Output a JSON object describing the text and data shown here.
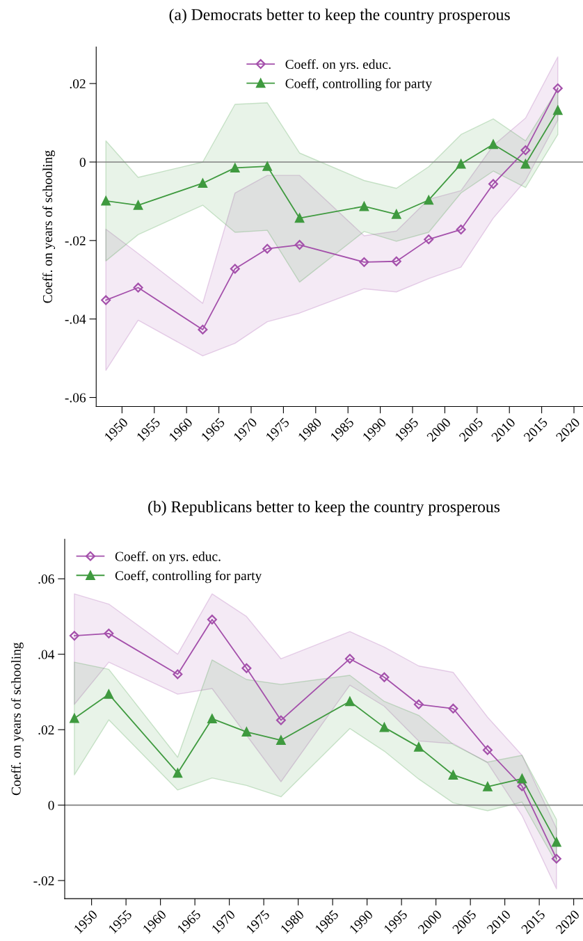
{
  "chart_data": [
    {
      "type": "line",
      "title": "(a) Democrats better to keep the country prosperous",
      "ylabel": "Coeff. on years of schooling",
      "x": [
        1947.5,
        1952.5,
        1962.5,
        1967.5,
        1972.5,
        1977.5,
        1987.5,
        1992.5,
        1997.5,
        2002.5,
        2007.5,
        2012.5,
        2017.5
      ],
      "series": [
        {
          "name": "Coeff. on yrs. educ.",
          "color": "#a450ab",
          "marker": "diamond",
          "values": [
            -0.0352,
            -0.032,
            -0.0427,
            -0.0272,
            -0.0221,
            -0.0211,
            -0.0255,
            -0.0253,
            -0.0197,
            -0.0172,
            -0.0056,
            0.003,
            0.0188
          ],
          "lower": [
            -0.0531,
            -0.0403,
            -0.0494,
            -0.0462,
            -0.0407,
            -0.0385,
            -0.0323,
            -0.0331,
            -0.0297,
            -0.0268,
            -0.0143,
            -0.0047,
            0.0107
          ],
          "upper": [
            -0.0171,
            -0.0233,
            -0.036,
            -0.0079,
            -0.0034,
            -0.0034,
            -0.0188,
            -0.0176,
            -0.0095,
            -0.0073,
            0.0042,
            0.0112,
            0.0268
          ]
        },
        {
          "name": "Coeff, controlling for party",
          "color": "#3f9a3f",
          "marker": "triangle",
          "values": [
            -0.0099,
            -0.011,
            -0.0054,
            -0.0015,
            -0.0011,
            -0.0143,
            -0.0113,
            -0.0133,
            -0.0097,
            -0.0005,
            0.0045,
            -0.0005,
            0.0132
          ],
          "lower": [
            -0.0252,
            -0.0185,
            -0.011,
            -0.0179,
            -0.0174,
            -0.0306,
            -0.0177,
            -0.0202,
            -0.0179,
            -0.0079,
            -0.0023,
            -0.0065,
            0.007
          ],
          "upper": [
            0.0054,
            -0.0039,
            0.0,
            0.0147,
            0.0151,
            0.0023,
            -0.0047,
            -0.0067,
            -0.0012,
            0.007,
            0.011,
            0.0054,
            0.0186
          ]
        }
      ],
      "xlim": [
        1946,
        2021.4
      ],
      "ylim": [
        -0.0623,
        0.0293
      ],
      "xticks": [
        1950,
        1955,
        1960,
        1965,
        1970,
        1975,
        1980,
        1985,
        1990,
        1995,
        2000,
        2005,
        2010,
        2015,
        2020
      ],
      "yticks": [
        {
          "value": -0.06,
          "label": "-.06"
        },
        {
          "value": -0.04,
          "label": "-.04"
        },
        {
          "value": -0.02,
          "label": "-.02"
        },
        {
          "value": 0,
          "label": "0"
        },
        {
          "value": 0.02,
          "label": ".02"
        }
      ],
      "ref_lines": [
        {
          "axis": "y",
          "value": 0,
          "color": "#808080"
        }
      ],
      "grid": false,
      "legend": "top"
    },
    {
      "type": "line",
      "title": "(b) Republicans better to keep the country prosperous",
      "ylabel": "Coeff. on years of schooling",
      "x": [
        1947.5,
        1952.5,
        1962.5,
        1967.5,
        1972.5,
        1977.5,
        1987.5,
        1992.5,
        1997.5,
        2002.5,
        2007.5,
        2012.5,
        2017.5
      ],
      "series": [
        {
          "name": "Coeff. on yrs. educ.",
          "color": "#a450ab",
          "marker": "diamond",
          "values": [
            0.0449,
            0.0455,
            0.0347,
            0.0492,
            0.0363,
            0.0225,
            0.0388,
            0.0339,
            0.0267,
            0.0256,
            0.0146,
            0.005,
            -0.0142
          ],
          "lower": [
            0.0267,
            0.0379,
            0.0294,
            0.0309,
            0.0185,
            0.0062,
            0.0318,
            0.0262,
            0.017,
            0.0163,
            0.0112,
            -0.0028,
            -0.0222
          ],
          "upper": [
            0.056,
            0.0533,
            0.04,
            0.056,
            0.05,
            0.0388,
            0.046,
            0.0419,
            0.0369,
            0.0352,
            0.0233,
            0.0132,
            -0.0062
          ]
        },
        {
          "name": "Coeff, controlling for party",
          "color": "#3f9a3f",
          "marker": "triangle",
          "values": [
            0.023,
            0.0294,
            0.0085,
            0.0229,
            0.0194,
            0.0172,
            0.0275,
            0.0206,
            0.0154,
            0.008,
            0.0049,
            0.007,
            -0.0098
          ],
          "lower": [
            0.008,
            0.0226,
            0.004,
            0.0072,
            0.0052,
            0.0022,
            0.0203,
            0.0143,
            0.0069,
            0.0006,
            -0.0015,
            0.0008,
            -0.0154
          ],
          "upper": [
            0.0379,
            0.036,
            0.0127,
            0.0385,
            0.0333,
            0.032,
            0.0344,
            0.0275,
            0.0238,
            0.0161,
            0.0114,
            0.0132,
            -0.0038
          ]
        }
      ],
      "xlim": [
        1946.1,
        2021.35
      ],
      "ylim": [
        -0.0248,
        0.0705
      ],
      "xticks": [
        1950,
        1955,
        1960,
        1965,
        1970,
        1975,
        1980,
        1985,
        1990,
        1995,
        2000,
        2005,
        2010,
        2015,
        2020
      ],
      "yticks": [
        {
          "value": -0.02,
          "label": "-.02"
        },
        {
          "value": 0,
          "label": "0"
        },
        {
          "value": 0.02,
          "label": ".02"
        },
        {
          "value": 0.04,
          "label": ".04"
        },
        {
          "value": 0.06,
          "label": ".06"
        }
      ],
      "ref_lines": [
        {
          "axis": "y",
          "value": 0,
          "color": "#808080"
        }
      ],
      "grid": false,
      "legend": "top left"
    }
  ]
}
